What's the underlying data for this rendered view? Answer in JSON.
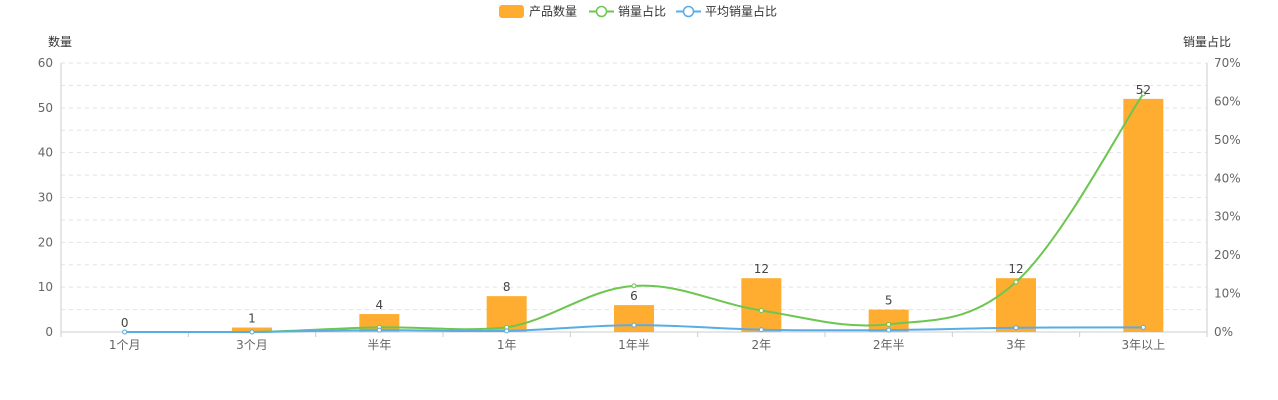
{
  "chart_data": {
    "type": "bar",
    "categories": [
      "1个月",
      "3个月",
      "半年",
      "1年",
      "1年半",
      "2年",
      "2年半",
      "3年",
      "3年以上"
    ],
    "series": [
      {
        "name": "产品数量",
        "type": "bar",
        "axis": "left",
        "values": [
          0,
          1,
          4,
          8,
          6,
          12,
          5,
          12,
          52
        ]
      },
      {
        "name": "销量占比",
        "type": "line",
        "axis": "right",
        "smooth": true,
        "values": [
          0,
          0,
          1.2,
          1.2,
          12,
          5.6,
          2,
          13,
          62
        ]
      },
      {
        "name": "平均销量占比",
        "type": "line",
        "axis": "right",
        "smooth": true,
        "values": [
          0,
          0,
          0.5,
          0.3,
          1.8,
          0.6,
          0.5,
          1.1,
          1.2
        ]
      }
    ],
    "ylabel": "数量",
    "y2label": "销量占比",
    "ylim": [
      0,
      60
    ],
    "yticks": [
      "0",
      "10",
      "20",
      "30",
      "40",
      "50",
      "60"
    ],
    "y2lim": [
      0,
      70
    ],
    "y2ticks": [
      "0%",
      "10%",
      "20%",
      "30%",
      "40%",
      "50%",
      "60%",
      "70%"
    ],
    "grid": "dashed-horizontal",
    "legend_position": "top-center",
    "colors": {
      "bar": "#ffad30",
      "line1": "#6cc650",
      "line2": "#5aace6"
    }
  }
}
